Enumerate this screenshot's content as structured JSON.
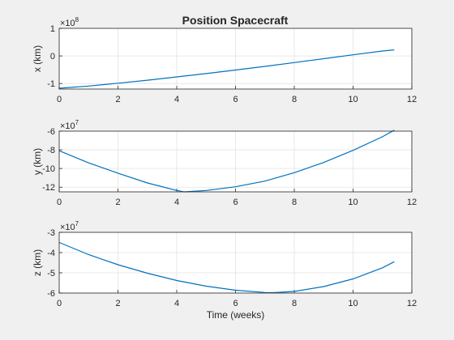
{
  "figure": {
    "title": "Position Spacecraft"
  },
  "chart_data": [
    {
      "type": "line",
      "title": "Position Spacecraft",
      "xlabel": "",
      "ylabel": "x (km)",
      "exponent_label": "×10",
      "exponent": "8",
      "xlim": [
        0,
        12
      ],
      "ylim": [
        -1.2,
        1.0
      ],
      "xticks": [
        "0",
        "2",
        "4",
        "6",
        "8",
        "10",
        "12"
      ],
      "yticks": [
        "-1",
        "0",
        "1"
      ],
      "ytick_values": [
        -1,
        0,
        1
      ],
      "grid": true,
      "line_color": "#0072bd",
      "series": [
        {
          "x": [
            0,
            1,
            2,
            3,
            4,
            5,
            6,
            7,
            8,
            9,
            10,
            11,
            11.4
          ],
          "y": [
            -1.17,
            -1.09,
            -0.99,
            -0.88,
            -0.76,
            -0.64,
            -0.51,
            -0.38,
            -0.24,
            -0.1,
            0.04,
            0.18,
            0.22
          ]
        }
      ]
    },
    {
      "type": "line",
      "title": "",
      "xlabel": "",
      "ylabel": "y (km)",
      "exponent_label": "×10",
      "exponent": "7",
      "xlim": [
        0,
        12
      ],
      "ylim": [
        -12.5,
        -6
      ],
      "xticks": [
        "0",
        "2",
        "4",
        "6",
        "8",
        "10",
        "12"
      ],
      "yticks": [
        "-12",
        "-10",
        "-8",
        "-6"
      ],
      "ytick_values": [
        -12,
        -10,
        -8,
        -6
      ],
      "grid": true,
      "line_color": "#0072bd",
      "series": [
        {
          "x": [
            0,
            1,
            2,
            3,
            4,
            4.25,
            5,
            6,
            7,
            8,
            9,
            10,
            11,
            11.4
          ],
          "y": [
            -8.1,
            -9.4,
            -10.5,
            -11.55,
            -12.35,
            -12.5,
            -12.35,
            -11.95,
            -11.35,
            -10.45,
            -9.35,
            -8.05,
            -6.6,
            -5.9
          ]
        }
      ]
    },
    {
      "type": "line",
      "title": "",
      "xlabel": "Time (weeks)",
      "ylabel": "z (km)",
      "exponent_label": "×10",
      "exponent": "7",
      "xlim": [
        0,
        12
      ],
      "ylim": [
        -6,
        -3
      ],
      "xticks": [
        "0",
        "2",
        "4",
        "6",
        "8",
        "10",
        "12"
      ],
      "yticks": [
        "-6",
        "-5",
        "-4",
        "-3"
      ],
      "ytick_values": [
        -6,
        -5,
        -4,
        -3
      ],
      "grid": true,
      "line_color": "#0072bd",
      "series": [
        {
          "x": [
            0,
            1,
            2,
            3,
            4,
            5,
            6,
            7,
            7.3,
            8,
            9,
            10,
            11,
            11.4
          ],
          "y": [
            -3.5,
            -4.1,
            -4.6,
            -5.02,
            -5.38,
            -5.66,
            -5.86,
            -5.97,
            -5.98,
            -5.92,
            -5.68,
            -5.3,
            -4.75,
            -4.45
          ]
        }
      ]
    }
  ]
}
